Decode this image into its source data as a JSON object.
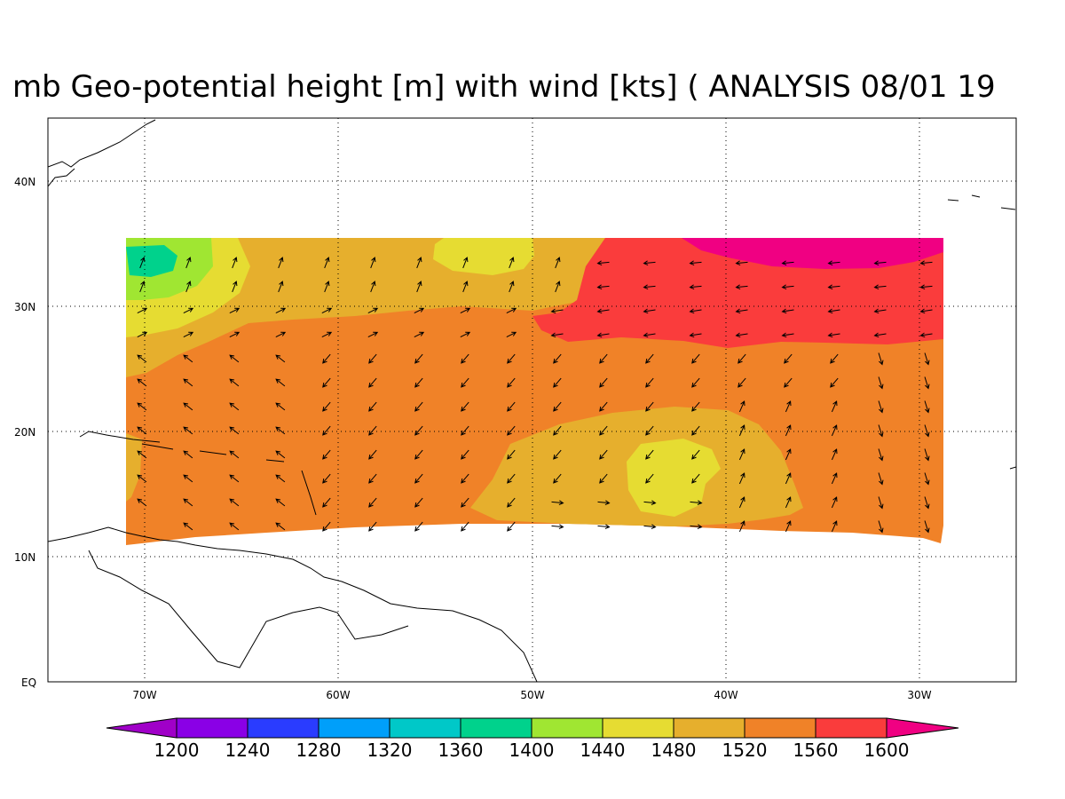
{
  "title": "mb Geo-potential height [m] with wind [kts] ( ANALYSIS 08/01 19",
  "axes": {
    "lat_ticks": [
      "40N",
      "30N",
      "20N",
      "10N",
      "EQ"
    ],
    "lon_ticks": [
      "70W",
      "60W",
      "50W",
      "40W",
      "30W"
    ]
  },
  "colorbar": {
    "labels": [
      "1200",
      "1240",
      "1280",
      "1320",
      "1360",
      "1400",
      "1440",
      "1480",
      "1520",
      "1560",
      "1600"
    ],
    "colors": [
      "#8a00e6",
      "#2a3cff",
      "#009ffa",
      "#00c8c8",
      "#00d28c",
      "#a0e632",
      "#e6dc32",
      "#e6af2d",
      "#f08228",
      "#fa3c3c",
      "#f00082"
    ],
    "under_color": "#a000c8",
    "over_color": "#f00082"
  },
  "fill_colors": {
    "c1400": "#00d28c",
    "c1440": "#a0e632",
    "c1480": "#e6dc32",
    "c1520": "#e6af2d",
    "c1560": "#f08228",
    "c1600": "#fa3c3c",
    "c1640": "#f00082"
  }
}
